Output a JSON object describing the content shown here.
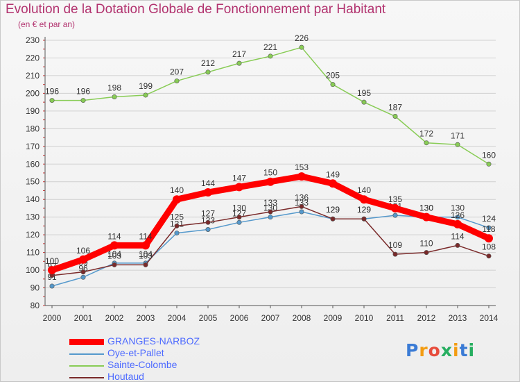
{
  "title": "Evolution de la Dotation Globale de Fonctionnement par Habitant",
  "subtitle": "(en € et par an)",
  "brand": "Proxiti",
  "chart_data": {
    "type": "line",
    "title": "Evolution de la Dotation Globale de Fonctionnement par Habitant",
    "subtitle": "(en € et par an)",
    "x": [
      "2000",
      "2001",
      "2002",
      "2003",
      "2004",
      "2005",
      "2006",
      "2007",
      "2008",
      "2009",
      "2010",
      "2011",
      "2012",
      "2013",
      "2014"
    ],
    "ylim": [
      80,
      230
    ],
    "yticks": [
      80,
      90,
      100,
      110,
      120,
      130,
      140,
      150,
      160,
      170,
      180,
      190,
      200,
      210,
      220,
      230
    ],
    "grid": "horizontal",
    "legend_position": "bottom-left",
    "series": [
      {
        "name": "GRANGES-NARBOZ",
        "color": "#ff0000",
        "values": [
          100,
          106,
          114,
          114,
          140,
          144,
          147,
          150,
          153,
          149,
          140,
          135,
          130,
          126,
          118
        ],
        "labels": [
          "100",
          "106",
          "114",
          "114",
          "140",
          "144",
          "147",
          "150",
          "153",
          "149",
          "140",
          "135",
          "130",
          "126",
          "118"
        ]
      },
      {
        "name": "Oye-et-Pallet",
        "color": "#5599cc",
        "values": [
          91,
          96,
          104,
          104,
          121,
          123,
          127,
          130,
          133,
          129,
          129,
          131,
          130,
          130,
          124
        ],
        "labels": [
          "91",
          "96",
          "104",
          "104",
          "121",
          "123",
          "127",
          "130",
          "133",
          "129",
          "129",
          "131",
          "130",
          "130",
          "124"
        ]
      },
      {
        "name": "Sainte-Colombe",
        "color": "#88cc55",
        "values": [
          196,
          196,
          198,
          199,
          207,
          212,
          217,
          221,
          226,
          205,
          195,
          187,
          172,
          171,
          160
        ],
        "labels": [
          "196",
          "196",
          "198",
          "199",
          "207",
          "212",
          "217",
          "221",
          "226",
          "205",
          "195",
          "187",
          "172",
          "171",
          "160"
        ]
      },
      {
        "name": "Houtaud",
        "color": "#7a2a2a",
        "values": [
          97,
          99,
          103,
          103,
          125,
          127,
          130,
          133,
          136,
          129,
          129,
          109,
          110,
          114,
          108
        ],
        "labels": [
          "97",
          "99",
          "103",
          "103",
          "125",
          "127",
          "130",
          "133",
          "136",
          "129",
          "129",
          "109",
          "110",
          "114",
          "108"
        ]
      }
    ]
  }
}
